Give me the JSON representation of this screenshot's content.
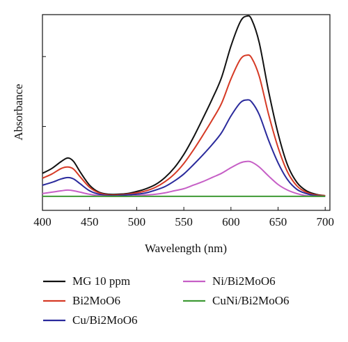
{
  "chart_data": {
    "type": "line",
    "title": "",
    "xlabel": "Wavelength (nm)",
    "ylabel": "Absorbance",
    "xlim": [
      400,
      705
    ],
    "ylim": [
      -0.2,
      2.6
    ],
    "x_ticks": [
      400,
      450,
      500,
      550,
      600,
      650,
      700
    ],
    "y_ticks": [
      0,
      1,
      2
    ],
    "grid": false,
    "legend_position": "bottom",
    "series": [
      {
        "name": "MG 10 ppm",
        "color": "#111111",
        "points": [
          [
            400,
            0.33
          ],
          [
            410,
            0.4
          ],
          [
            420,
            0.5
          ],
          [
            427,
            0.55
          ],
          [
            433,
            0.5
          ],
          [
            440,
            0.35
          ],
          [
            450,
            0.16
          ],
          [
            460,
            0.06
          ],
          [
            470,
            0.03
          ],
          [
            480,
            0.03
          ],
          [
            490,
            0.04
          ],
          [
            500,
            0.07
          ],
          [
            510,
            0.11
          ],
          [
            520,
            0.17
          ],
          [
            530,
            0.27
          ],
          [
            540,
            0.41
          ],
          [
            550,
            0.6
          ],
          [
            560,
            0.84
          ],
          [
            570,
            1.11
          ],
          [
            580,
            1.39
          ],
          [
            590,
            1.7
          ],
          [
            600,
            2.15
          ],
          [
            610,
            2.5
          ],
          [
            617,
            2.58
          ],
          [
            622,
            2.53
          ],
          [
            630,
            2.2
          ],
          [
            640,
            1.5
          ],
          [
            650,
            0.9
          ],
          [
            660,
            0.45
          ],
          [
            670,
            0.2
          ],
          [
            680,
            0.08
          ],
          [
            690,
            0.03
          ],
          [
            700,
            0.01
          ]
        ]
      },
      {
        "name": "Bi2MoO6",
        "color": "#d63a25",
        "points": [
          [
            400,
            0.26
          ],
          [
            410,
            0.32
          ],
          [
            420,
            0.4
          ],
          [
            427,
            0.42
          ],
          [
            433,
            0.39
          ],
          [
            440,
            0.28
          ],
          [
            450,
            0.13
          ],
          [
            460,
            0.05
          ],
          [
            470,
            0.02
          ],
          [
            480,
            0.02
          ],
          [
            490,
            0.03
          ],
          [
            500,
            0.05
          ],
          [
            510,
            0.08
          ],
          [
            520,
            0.13
          ],
          [
            530,
            0.21
          ],
          [
            540,
            0.32
          ],
          [
            550,
            0.47
          ],
          [
            560,
            0.66
          ],
          [
            570,
            0.87
          ],
          [
            580,
            1.09
          ],
          [
            590,
            1.33
          ],
          [
            600,
            1.68
          ],
          [
            610,
            1.96
          ],
          [
            617,
            2.02
          ],
          [
            622,
            1.98
          ],
          [
            630,
            1.72
          ],
          [
            640,
            1.17
          ],
          [
            650,
            0.7
          ],
          [
            660,
            0.35
          ],
          [
            670,
            0.15
          ],
          [
            680,
            0.06
          ],
          [
            690,
            0.02
          ],
          [
            700,
            0.01
          ]
        ]
      },
      {
        "name": "Cu/Bi2MoO6",
        "color": "#2a2a9c",
        "points": [
          [
            400,
            0.16
          ],
          [
            410,
            0.2
          ],
          [
            420,
            0.25
          ],
          [
            427,
            0.27
          ],
          [
            433,
            0.25
          ],
          [
            440,
            0.18
          ],
          [
            450,
            0.08
          ],
          [
            460,
            0.03
          ],
          [
            470,
            0.01
          ],
          [
            480,
            0.01
          ],
          [
            490,
            0.02
          ],
          [
            500,
            0.03
          ],
          [
            510,
            0.05
          ],
          [
            520,
            0.09
          ],
          [
            530,
            0.14
          ],
          [
            540,
            0.22
          ],
          [
            550,
            0.32
          ],
          [
            560,
            0.45
          ],
          [
            570,
            0.59
          ],
          [
            580,
            0.74
          ],
          [
            590,
            0.91
          ],
          [
            600,
            1.15
          ],
          [
            610,
            1.34
          ],
          [
            617,
            1.38
          ],
          [
            622,
            1.35
          ],
          [
            630,
            1.17
          ],
          [
            640,
            0.8
          ],
          [
            650,
            0.48
          ],
          [
            660,
            0.24
          ],
          [
            670,
            0.1
          ],
          [
            680,
            0.04
          ],
          [
            690,
            0.01
          ],
          [
            700,
            0.0
          ]
        ]
      },
      {
        "name": "Ni/Bi2MoO6",
        "color": "#c65fc6",
        "points": [
          [
            400,
            0.04
          ],
          [
            410,
            0.06
          ],
          [
            420,
            0.08
          ],
          [
            427,
            0.09
          ],
          [
            433,
            0.08
          ],
          [
            440,
            0.06
          ],
          [
            450,
            0.03
          ],
          [
            460,
            0.01
          ],
          [
            470,
            0.0
          ],
          [
            480,
            0.0
          ],
          [
            490,
            0.0
          ],
          [
            500,
            0.01
          ],
          [
            510,
            0.02
          ],
          [
            520,
            0.03
          ],
          [
            530,
            0.05
          ],
          [
            540,
            0.08
          ],
          [
            550,
            0.11
          ],
          [
            560,
            0.16
          ],
          [
            570,
            0.21
          ],
          [
            580,
            0.27
          ],
          [
            590,
            0.33
          ],
          [
            600,
            0.41
          ],
          [
            610,
            0.48
          ],
          [
            617,
            0.5
          ],
          [
            622,
            0.49
          ],
          [
            630,
            0.42
          ],
          [
            640,
            0.29
          ],
          [
            650,
            0.17
          ],
          [
            660,
            0.09
          ],
          [
            670,
            0.04
          ],
          [
            680,
            0.01
          ],
          [
            690,
            0.0
          ],
          [
            700,
            0.0
          ]
        ]
      },
      {
        "name": "CuNi/Bi2MoO6",
        "color": "#3f9a35",
        "points": [
          [
            400,
            0.0
          ],
          [
            450,
            0.0
          ],
          [
            500,
            0.0
          ],
          [
            550,
            0.0
          ],
          [
            600,
            0.0
          ],
          [
            650,
            0.0
          ],
          [
            700,
            0.0
          ]
        ]
      }
    ]
  }
}
